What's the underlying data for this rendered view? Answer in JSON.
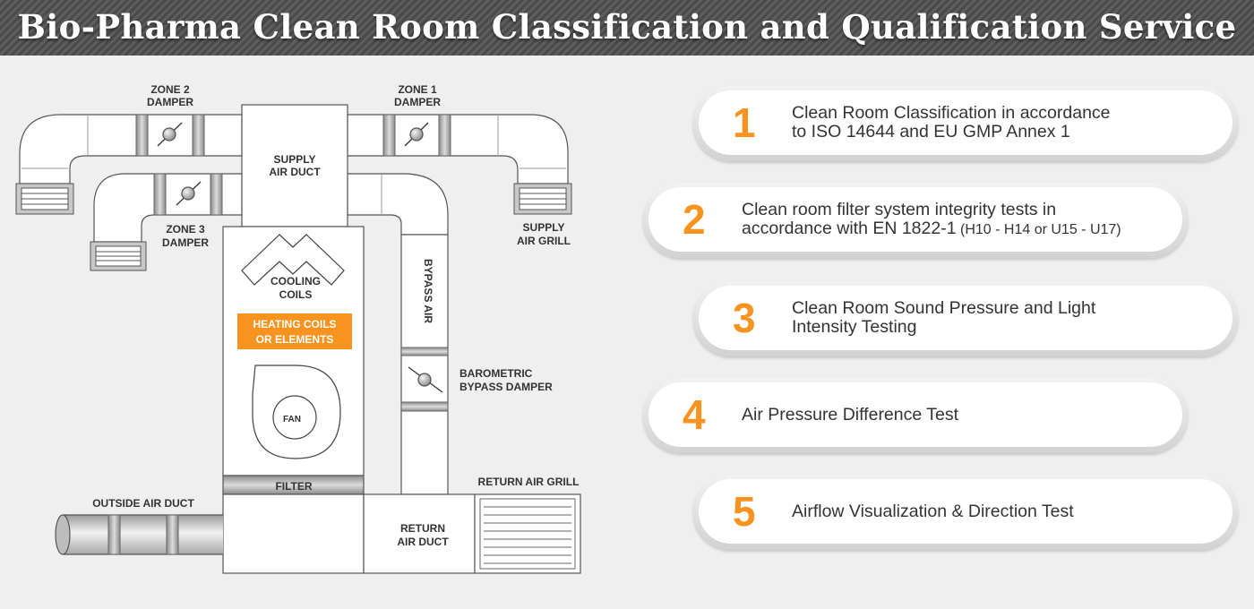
{
  "header": {
    "title": "Bio-Pharma Clean Room Classification and Qualification Service",
    "bg_color": "#555555"
  },
  "diagram": {
    "labels": {
      "zone2_line1": "ZONE 2",
      "zone2_line2": "DAMPER",
      "zone1_line1": "ZONE 1",
      "zone1_line2": "DAMPER",
      "supply_duct_line1": "SUPPLY",
      "supply_duct_line2": "AIR DUCT",
      "zone3_line1": "ZONE 3",
      "zone3_line2": "DAMPER",
      "supply_grill_line1": "SUPPLY",
      "supply_grill_line2": "AIR GRILL",
      "cooling_line1": "COOLING",
      "cooling_line2": "COILS",
      "heating_line1": "HEATING COILS",
      "heating_line2": "OR ELEMENTS",
      "bypass_air": "BYPASS AIR",
      "baro_line1": "BAROMETRIC",
      "baro_line2": "BYPASS DAMPER",
      "fan": "FAN",
      "filter": "FILTER",
      "outside_air_duct": "OUTSIDE AIR DUCT",
      "return_air_grill": "RETURN AIR GRILL",
      "return_duct_line1": "RETURN",
      "return_duct_line2": "AIR DUCT"
    },
    "heating_color": "#f7931e"
  },
  "services": {
    "accent_color": "#f7931e",
    "items": [
      {
        "number": "1",
        "line1": "Clean Room Classification in accordance",
        "line2": "to ISO 14644 and EU GMP Annex 1",
        "line2_small": ""
      },
      {
        "number": "2",
        "line1": "Clean room filter system integrity tests in",
        "line2": "accordance with EN 1822-1",
        "line2_small": " (H10 - H14 or U15 - U17)"
      },
      {
        "number": "3",
        "line1": "Clean Room Sound Pressure and Light",
        "line2": "Intensity Testing",
        "line2_small": ""
      },
      {
        "number": "4",
        "line1": "Air Pressure Difference Test",
        "line2": "",
        "line2_small": ""
      },
      {
        "number": "5",
        "line1": "Airflow Visualization & Direction Test",
        "line2": "",
        "line2_small": ""
      }
    ]
  }
}
